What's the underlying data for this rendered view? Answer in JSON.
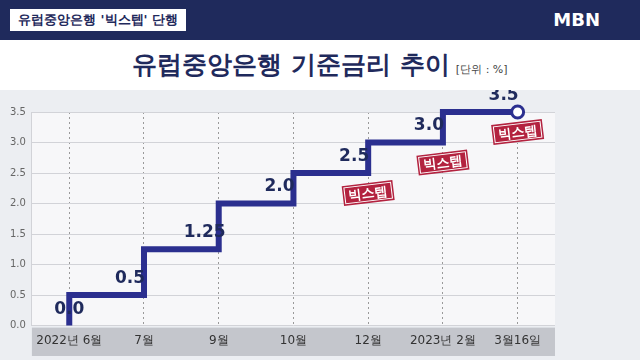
{
  "header": {
    "caption": "유럽중앙은행 '빅스텝' 단행",
    "logo": "MBN"
  },
  "chart_data": {
    "type": "line",
    "title": "유럽중앙은행 기준금리 추이",
    "subtitle": "[단위 : %]",
    "categories": [
      "2022년 6월",
      "7월",
      "9월",
      "10월",
      "12월",
      "2023년 2월",
      "3월16일"
    ],
    "values": [
      0.0,
      0.5,
      1.25,
      2.0,
      2.5,
      3.0,
      3.5
    ],
    "value_labels": [
      "0.0",
      "0.5",
      "1.25",
      "2.0",
      "2.5",
      "3.0",
      "3.5"
    ],
    "data_labels": true,
    "color": "#2b2f8f",
    "line_style": "stepped",
    "marker": "circle",
    "ylim": [
      0,
      3.5
    ],
    "yticks": [
      {
        "value": 0,
        "label": "0.0"
      },
      0.5,
      {
        "value": 1,
        "label": "1.0"
      },
      1.5,
      {
        "value": 2,
        "label": "2.0"
      },
      2.5,
      {
        "value": 3,
        "label": "3.0"
      },
      3.5
    ],
    "grid": true,
    "annotations": [
      {
        "category": "12월",
        "text": "빅스텝"
      },
      {
        "category": "2023년 2월",
        "text": "빅스텝"
      },
      {
        "category": "3월16일",
        "text": "빅스텝"
      }
    ]
  }
}
